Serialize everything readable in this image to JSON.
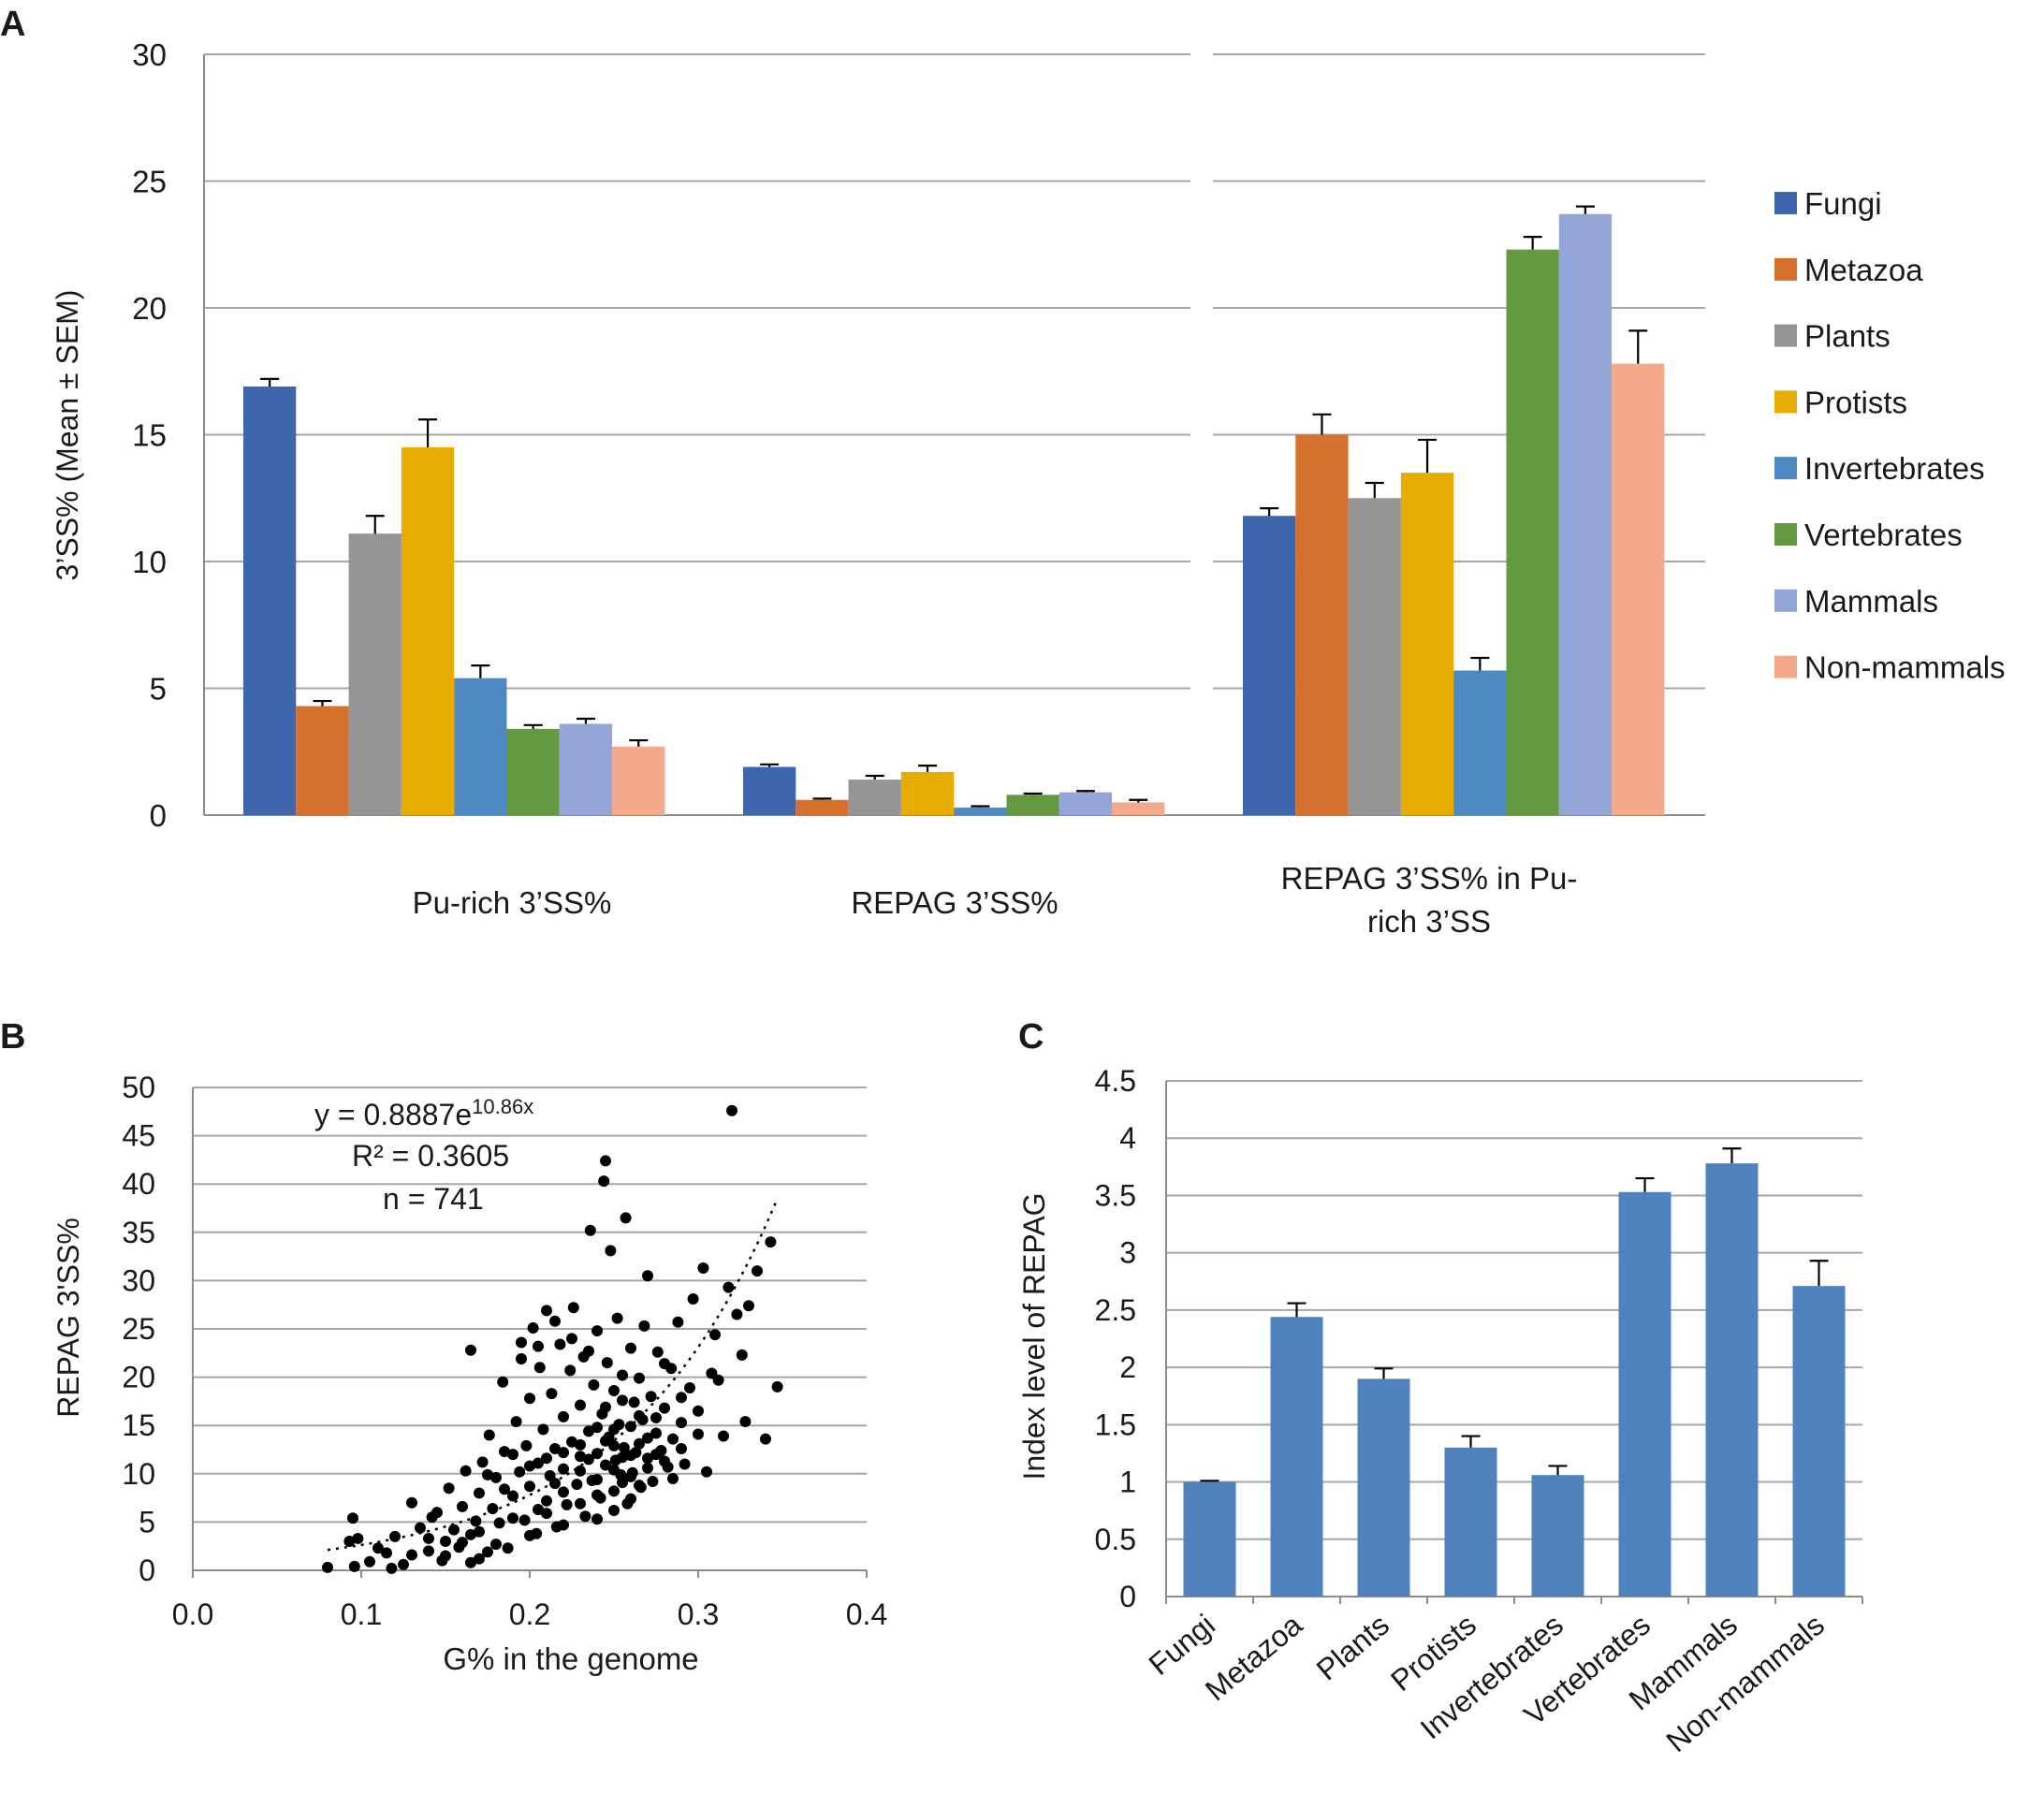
{
  "panels": {
    "A": {
      "label": "A"
    },
    "B": {
      "label": "B"
    },
    "C": {
      "label": "C"
    }
  },
  "chart_data": [
    {
      "id": "A",
      "type": "bar",
      "title": "",
      "ylabel": "3’SS% (Mean ± SEM)",
      "xlabel": "",
      "ylim": [
        0,
        30
      ],
      "yticks": [
        0,
        5,
        10,
        15,
        20,
        25,
        30
      ],
      "groups": [
        {
          "label_lines": [
            "Pu-rich 3’SS%"
          ]
        },
        {
          "label_lines": [
            "REPAG 3’SS%"
          ]
        },
        {
          "label_lines": [
            "REPAG 3’SS% in Pu-",
            "rich 3’SS"
          ]
        }
      ],
      "legend_position": "right",
      "series": [
        {
          "name": "Fungi",
          "color": "#3f65ad",
          "values": [
            16.9,
            1.9,
            11.8
          ],
          "errors": [
            0.3,
            0.1,
            0.3
          ]
        },
        {
          "name": "Metazoa",
          "color": "#d6702d",
          "values": [
            4.3,
            0.6,
            15.0
          ],
          "errors": [
            0.2,
            0.05,
            0.8
          ]
        },
        {
          "name": "Plants",
          "color": "#959595",
          "values": [
            11.1,
            1.4,
            12.5
          ],
          "errors": [
            0.7,
            0.15,
            0.6
          ]
        },
        {
          "name": "Protists",
          "color": "#e6ad00",
          "values": [
            14.5,
            1.7,
            13.5
          ],
          "errors": [
            1.1,
            0.25,
            1.3
          ]
        },
        {
          "name": "Invertebrates",
          "color": "#4e89c2",
          "values": [
            5.4,
            0.3,
            5.7
          ],
          "errors": [
            0.5,
            0.05,
            0.5
          ]
        },
        {
          "name": "Vertebrates",
          "color": "#63993f",
          "values": [
            3.4,
            0.8,
            22.3
          ],
          "errors": [
            0.15,
            0.05,
            0.5
          ]
        },
        {
          "name": "Mammals",
          "color": "#94a6d8",
          "values": [
            3.6,
            0.9,
            23.7
          ],
          "errors": [
            0.2,
            0.05,
            0.3
          ]
        },
        {
          "name": "Non-mammals",
          "color": "#f2aa8b",
          "values": [
            2.7,
            0.5,
            17.8
          ],
          "errors": [
            0.25,
            0.1,
            1.3
          ]
        }
      ]
    },
    {
      "id": "B",
      "type": "scatter",
      "title": "",
      "xlabel": "G% in the genome",
      "ylabel": "REPAG 3'SS%",
      "xlim": [
        0,
        0.4
      ],
      "ylim": [
        0,
        50
      ],
      "xticks": [
        "0.0",
        "0.1",
        "0.2",
        "0.3",
        "0.4"
      ],
      "yticks": [
        0,
        5,
        10,
        15,
        20,
        25,
        30,
        35,
        40,
        45,
        50
      ],
      "annotations": {
        "equation_prefix": "y = 0.8887e",
        "equation_exponent": "10.86x",
        "r_squared": "R² = 0.3605",
        "n": "n = 741"
      },
      "trendline": {
        "a": 0.8887,
        "b": 10.86,
        "x_range": [
          0.08,
          0.347
        ]
      },
      "n_points": 741,
      "points": [
        [
          0.08,
          0.3
        ],
        [
          0.093,
          3.0
        ],
        [
          0.095,
          5.4
        ],
        [
          0.098,
          3.3
        ],
        [
          0.096,
          0.4
        ],
        [
          0.105,
          0.9
        ],
        [
          0.11,
          2.3
        ],
        [
          0.115,
          1.8
        ],
        [
          0.118,
          0.2
        ],
        [
          0.12,
          3.5
        ],
        [
          0.125,
          0.6
        ],
        [
          0.13,
          1.6
        ],
        [
          0.13,
          7.0
        ],
        [
          0.135,
          4.4
        ],
        [
          0.14,
          2.0
        ],
        [
          0.142,
          5.5
        ],
        [
          0.145,
          6.0
        ],
        [
          0.148,
          1.0
        ],
        [
          0.15,
          3.0
        ],
        [
          0.152,
          8.5
        ],
        [
          0.155,
          4.2
        ],
        [
          0.158,
          2.4
        ],
        [
          0.16,
          6.6
        ],
        [
          0.162,
          10.3
        ],
        [
          0.165,
          3.7
        ],
        [
          0.165,
          22.8
        ],
        [
          0.168,
          5.1
        ],
        [
          0.17,
          8.0
        ],
        [
          0.172,
          11.2
        ],
        [
          0.175,
          1.9
        ],
        [
          0.176,
          14.0
        ],
        [
          0.178,
          6.4
        ],
        [
          0.18,
          9.6
        ],
        [
          0.182,
          4.9
        ],
        [
          0.184,
          19.5
        ],
        [
          0.185,
          12.3
        ],
        [
          0.187,
          2.3
        ],
        [
          0.19,
          7.7
        ],
        [
          0.192,
          15.4
        ],
        [
          0.194,
          10.2
        ],
        [
          0.195,
          23.6
        ],
        [
          0.197,
          5.2
        ],
        [
          0.198,
          12.9
        ],
        [
          0.2,
          8.7
        ],
        [
          0.2,
          17.8
        ],
        [
          0.202,
          25.1
        ],
        [
          0.204,
          3.8
        ],
        [
          0.205,
          11.1
        ],
        [
          0.206,
          21.0
        ],
        [
          0.208,
          14.6
        ],
        [
          0.21,
          7.2
        ],
        [
          0.21,
          26.9
        ],
        [
          0.212,
          9.8
        ],
        [
          0.213,
          18.3
        ],
        [
          0.215,
          12.6
        ],
        [
          0.216,
          4.5
        ],
        [
          0.218,
          23.4
        ],
        [
          0.22,
          15.9
        ],
        [
          0.22,
          10.5
        ],
        [
          0.222,
          6.8
        ],
        [
          0.224,
          20.7
        ],
        [
          0.225,
          13.3
        ],
        [
          0.226,
          27.2
        ],
        [
          0.228,
          8.9
        ],
        [
          0.23,
          17.1
        ],
        [
          0.23,
          11.8
        ],
        [
          0.232,
          22.1
        ],
        [
          0.233,
          5.6
        ],
        [
          0.235,
          14.4
        ],
        [
          0.236,
          35.2
        ],
        [
          0.237,
          9.3
        ],
        [
          0.238,
          19.2
        ],
        [
          0.24,
          12.1
        ],
        [
          0.24,
          24.8
        ],
        [
          0.242,
          7.5
        ],
        [
          0.243,
          16.2
        ],
        [
          0.244,
          40.3
        ],
        [
          0.245,
          42.4
        ],
        [
          0.245,
          10.9
        ],
        [
          0.246,
          21.5
        ],
        [
          0.247,
          13.8
        ],
        [
          0.248,
          33.1
        ],
        [
          0.25,
          8.2
        ],
        [
          0.25,
          18.6
        ],
        [
          0.251,
          11.4
        ],
        [
          0.252,
          26.1
        ],
        [
          0.253,
          15.1
        ],
        [
          0.254,
          9.9
        ],
        [
          0.255,
          20.2
        ],
        [
          0.256,
          12.7
        ],
        [
          0.257,
          36.5
        ],
        [
          0.258,
          6.9
        ],
        [
          0.26,
          14.9
        ],
        [
          0.26,
          23.0
        ],
        [
          0.261,
          10.1
        ],
        [
          0.262,
          17.4
        ],
        [
          0.263,
          12.2
        ],
        [
          0.265,
          19.9
        ],
        [
          0.266,
          8.6
        ],
        [
          0.267,
          15.6
        ],
        [
          0.268,
          25.3
        ],
        [
          0.27,
          11.6
        ],
        [
          0.27,
          30.5
        ],
        [
          0.272,
          18.0
        ],
        [
          0.273,
          9.2
        ],
        [
          0.275,
          14.2
        ],
        [
          0.276,
          22.6
        ],
        [
          0.278,
          12.4
        ],
        [
          0.28,
          16.8
        ],
        [
          0.282,
          10.7
        ],
        [
          0.284,
          20.9
        ],
        [
          0.285,
          13.6
        ],
        [
          0.288,
          25.7
        ],
        [
          0.29,
          15.3
        ],
        [
          0.292,
          11.0
        ],
        [
          0.295,
          18.9
        ],
        [
          0.297,
          28.1
        ],
        [
          0.3,
          14.1
        ],
        [
          0.303,
          31.3
        ],
        [
          0.305,
          10.2
        ],
        [
          0.308,
          20.4
        ],
        [
          0.31,
          24.4
        ],
        [
          0.312,
          19.7
        ],
        [
          0.315,
          13.9
        ],
        [
          0.318,
          29.3
        ],
        [
          0.32,
          47.6
        ],
        [
          0.323,
          26.5
        ],
        [
          0.326,
          22.3
        ],
        [
          0.328,
          15.4
        ],
        [
          0.33,
          27.4
        ],
        [
          0.335,
          31.0
        ],
        [
          0.34,
          13.6
        ],
        [
          0.343,
          34.0
        ],
        [
          0.347,
          19.0
        ],
        [
          0.22,
          8.1
        ],
        [
          0.23,
          10.3
        ],
        [
          0.24,
          9.4
        ],
        [
          0.25,
          12.9
        ],
        [
          0.255,
          11.7
        ],
        [
          0.26,
          9.7
        ],
        [
          0.265,
          13.1
        ],
        [
          0.27,
          10.6
        ],
        [
          0.275,
          12.0
        ],
        [
          0.235,
          11.5
        ],
        [
          0.245,
          13.4
        ],
        [
          0.25,
          14.6
        ],
        [
          0.26,
          11.9
        ],
        [
          0.265,
          8.8
        ],
        [
          0.27,
          13.7
        ],
        [
          0.28,
          11.3
        ],
        [
          0.285,
          9.5
        ],
        [
          0.29,
          12.6
        ],
        [
          0.24,
          7.8
        ],
        [
          0.23,
          13.0
        ],
        [
          0.22,
          12.2
        ],
        [
          0.215,
          9.0
        ],
        [
          0.21,
          11.6
        ],
        [
          0.205,
          6.3
        ],
        [
          0.2,
          10.8
        ],
        [
          0.19,
          12.0
        ],
        [
          0.185,
          8.4
        ],
        [
          0.175,
          9.9
        ],
        [
          0.17,
          4.0
        ],
        [
          0.16,
          2.9
        ],
        [
          0.15,
          1.5
        ],
        [
          0.14,
          3.3
        ],
        [
          0.225,
          24.0
        ],
        [
          0.205,
          23.2
        ],
        [
          0.215,
          25.8
        ],
        [
          0.235,
          22.7
        ],
        [
          0.195,
          21.9
        ],
        [
          0.28,
          21.4
        ],
        [
          0.29,
          17.9
        ],
        [
          0.3,
          16.5
        ],
        [
          0.245,
          16.9
        ],
        [
          0.255,
          17.6
        ],
        [
          0.265,
          16.0
        ],
        [
          0.275,
          15.8
        ],
        [
          0.24,
          14.8
        ],
        [
          0.25,
          10.4
        ],
        [
          0.255,
          9.1
        ],
        [
          0.26,
          7.4
        ],
        [
          0.25,
          6.2
        ],
        [
          0.24,
          5.3
        ],
        [
          0.23,
          6.9
        ],
        [
          0.22,
          4.7
        ],
        [
          0.21,
          5.9
        ],
        [
          0.2,
          3.6
        ],
        [
          0.19,
          5.4
        ],
        [
          0.18,
          2.7
        ],
        [
          0.17,
          1.2
        ],
        [
          0.165,
          0.8
        ]
      ]
    },
    {
      "id": "C",
      "type": "bar",
      "title": "",
      "xlabel": "",
      "ylabel": "Index level of REPAG",
      "ylim": [
        0,
        4.5
      ],
      "yticks": [
        "0",
        "0.5",
        "1",
        "1.5",
        "2",
        "2.5",
        "3",
        "3.5",
        "4",
        "4.5"
      ],
      "categories": [
        "Fungi",
        "Metazoa",
        "Plants",
        "Protists",
        "Invertebrates",
        "Vertebrates",
        "Mammals",
        "Non-mammals"
      ],
      "values": [
        1.0,
        2.44,
        1.9,
        1.3,
        1.06,
        3.53,
        3.78,
        2.71
      ],
      "errors": [
        0.01,
        0.12,
        0.09,
        0.1,
        0.08,
        0.12,
        0.13,
        0.22
      ],
      "color": "#4f81bd"
    }
  ]
}
